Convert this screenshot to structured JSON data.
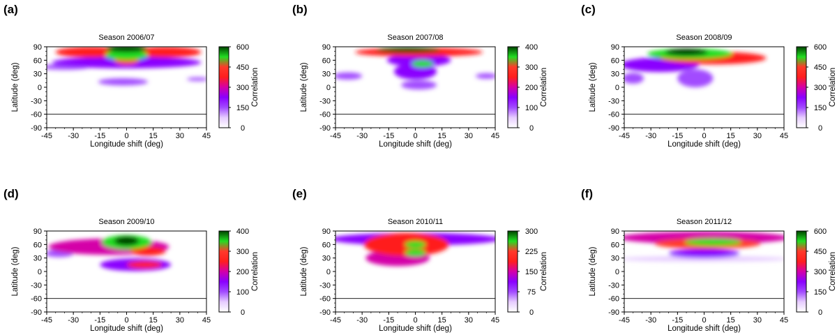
{
  "figure": {
    "palette": {
      "stops": [
        "#ffffff",
        "#e6ccff",
        "#a24bff",
        "#8a00ff",
        "#d400a8",
        "#ff1e1e",
        "#ff3a2a",
        "#22dd22",
        "#004400"
      ],
      "frame": "#000000"
    }
  },
  "chart_data": [
    {
      "type": "heatmap",
      "panel": "(a)",
      "title": "Season 2006/07",
      "xlabel": "Longitude shift (deg)",
      "ylabel": "Latitude (deg)",
      "colorbar_label": "Correlation",
      "xlim": [
        -45,
        45
      ],
      "ylim": [
        -90,
        90
      ],
      "x_ticks": [
        "-45",
        "-30",
        "-15",
        "0",
        "15",
        "30",
        "45"
      ],
      "y_ticks": [
        "90",
        "60",
        "30",
        "0",
        "-30",
        "-60",
        "-90"
      ],
      "colorbar_range": [
        0,
        600
      ],
      "colorbar_ticks": [
        "600",
        "450",
        "300",
        "150",
        "0"
      ],
      "reference_line_latitude": -60,
      "features": [
        {
          "lon": 0,
          "lat": 86,
          "rlon": 12,
          "rlat": 8,
          "value": 600
        },
        {
          "lon": 0,
          "lat": 72,
          "rlon": 12,
          "rlat": 12,
          "value": 520
        },
        {
          "lon": 0,
          "lat": 60,
          "rlon": 7,
          "rlat": 10,
          "value": 430
        },
        {
          "lon": -20,
          "lat": 78,
          "rlon": 20,
          "rlat": 12,
          "value": 340
        },
        {
          "lon": 22,
          "lat": 78,
          "rlon": 20,
          "rlat": 12,
          "value": 340
        },
        {
          "lon": 0,
          "lat": 55,
          "rlon": 42,
          "rlat": 13,
          "value": 210
        },
        {
          "lon": -35,
          "lat": 45,
          "rlon": 14,
          "rlat": 6,
          "value": 130
        },
        {
          "lon": 40,
          "lat": 18,
          "rlon": 6,
          "rlat": 4,
          "value": 150
        },
        {
          "lon": -2,
          "lat": 12,
          "rlon": 14,
          "rlat": 8,
          "value": 140
        }
      ]
    },
    {
      "type": "heatmap",
      "panel": "(b)",
      "title": "Season 2007/08",
      "xlabel": "Longitude shift (deg)",
      "ylabel": "Latitude (deg)",
      "colorbar_label": "Correlation",
      "xlim": [
        -45,
        45
      ],
      "ylim": [
        -90,
        90
      ],
      "x_ticks": [
        "-45",
        "-30",
        "-15",
        "0",
        "15",
        "30",
        "45"
      ],
      "y_ticks": [
        "90",
        "60",
        "30",
        "0",
        "-30",
        "-60",
        "-90"
      ],
      "colorbar_range": [
        0,
        400
      ],
      "colorbar_ticks": [
        "400",
        "300",
        "200",
        "100",
        "0"
      ],
      "reference_line_latitude": -60,
      "features": [
        {
          "lon": -4,
          "lat": 83,
          "rlon": 18,
          "rlat": 6,
          "value": 400
        },
        {
          "lon": 4,
          "lat": 52,
          "rlon": 6,
          "rlat": 8,
          "value": 330
        },
        {
          "lon": 2,
          "lat": 78,
          "rlon": 36,
          "rlat": 10,
          "value": 270
        },
        {
          "lon": 2,
          "lat": 60,
          "rlon": 18,
          "rlat": 14,
          "value": 170
        },
        {
          "lon": 0,
          "lat": 35,
          "rlon": 12,
          "rlat": 18,
          "value": 130
        },
        {
          "lon": 2,
          "lat": 5,
          "rlon": 10,
          "rlat": 10,
          "value": 110
        },
        {
          "lon": -38,
          "lat": 25,
          "rlon": 8,
          "rlat": 8,
          "value": 90
        },
        {
          "lon": 40,
          "lat": 25,
          "rlon": 6,
          "rlat": 6,
          "value": 110
        }
      ]
    },
    {
      "type": "heatmap",
      "panel": "(c)",
      "title": "Season 2008/09",
      "xlabel": "Longitude shift (deg)",
      "ylabel": "Latitude (deg)",
      "colorbar_label": "Correlation",
      "xlim": [
        -45,
        45
      ],
      "ylim": [
        -90,
        90
      ],
      "x_ticks": [
        "-45",
        "-30",
        "-15",
        "0",
        "15",
        "30",
        "45"
      ],
      "y_ticks": [
        "90",
        "60",
        "30",
        "0",
        "-30",
        "-60",
        "-90"
      ],
      "colorbar_range": [
        0,
        600
      ],
      "colorbar_ticks": [
        "600",
        "450",
        "300",
        "150",
        "0"
      ],
      "reference_line_latitude": -60,
      "features": [
        {
          "lon": -10,
          "lat": 78,
          "rlon": 12,
          "rlat": 8,
          "value": 600
        },
        {
          "lon": -8,
          "lat": 74,
          "rlon": 24,
          "rlat": 12,
          "value": 500
        },
        {
          "lon": 5,
          "lat": 65,
          "rlon": 30,
          "rlat": 14,
          "value": 380
        },
        {
          "lon": -25,
          "lat": 50,
          "rlon": 22,
          "rlat": 16,
          "value": 200
        },
        {
          "lon": -5,
          "lat": 20,
          "rlon": 10,
          "rlat": 20,
          "value": 180
        },
        {
          "lon": -40,
          "lat": 20,
          "rlon": 6,
          "rlat": 12,
          "value": 140
        }
      ]
    },
    {
      "type": "heatmap",
      "panel": "(d)",
      "title": "Season 2009/10",
      "xlabel": "Longitude shift (deg)",
      "ylabel": "Latitude (deg)",
      "colorbar_label": "Correlation",
      "xlim": [
        -45,
        45
      ],
      "ylim": [
        -90,
        90
      ],
      "x_ticks": [
        "-45",
        "-30",
        "-15",
        "0",
        "15",
        "30",
        "45"
      ],
      "y_ticks": [
        "90",
        "60",
        "30",
        "0",
        "-30",
        "-60",
        "-90"
      ],
      "colorbar_range": [
        0,
        400
      ],
      "colorbar_ticks": [
        "400",
        "300",
        "200",
        "100",
        "0"
      ],
      "reference_line_latitude": -60,
      "features": [
        {
          "lon": 0,
          "lat": 68,
          "rlon": 7,
          "rlat": 10,
          "value": 400
        },
        {
          "lon": 0,
          "lat": 65,
          "rlon": 14,
          "rlat": 16,
          "value": 330
        },
        {
          "lon": 12,
          "lat": 45,
          "rlon": 10,
          "rlat": 10,
          "value": 240
        },
        {
          "lon": -10,
          "lat": 55,
          "rlon": 34,
          "rlat": 18,
          "value": 200
        },
        {
          "lon": 10,
          "lat": 15,
          "rlon": 10,
          "rlat": 8,
          "value": 230
        },
        {
          "lon": 5,
          "lat": 15,
          "rlon": 20,
          "rlat": 14,
          "value": 150
        },
        {
          "lon": -38,
          "lat": 40,
          "rlon": 8,
          "rlat": 8,
          "value": 110
        }
      ]
    },
    {
      "type": "heatmap",
      "panel": "(e)",
      "title": "Season 2010/11",
      "xlabel": "Longitude shift (deg)",
      "ylabel": "Latitude (deg)",
      "colorbar_label": "Correlation",
      "xlim": [
        -45,
        45
      ],
      "ylim": [
        -90,
        90
      ],
      "x_ticks": [
        "-45",
        "-30",
        "-15",
        "0",
        "15",
        "30",
        "45"
      ],
      "y_ticks": [
        "90",
        "60",
        "30",
        "0",
        "-30",
        "-60",
        "-90"
      ],
      "colorbar_range": [
        0,
        300
      ],
      "colorbar_ticks": [
        "300",
        "225",
        "150",
        "75",
        "0"
      ],
      "reference_line_latitude": -60,
      "features": [
        {
          "lon": 0,
          "lat": 60,
          "rlon": 6,
          "rlat": 8,
          "value": 280
        },
        {
          "lon": 0,
          "lat": 42,
          "rlon": 6,
          "rlat": 8,
          "value": 270
        },
        {
          "lon": -5,
          "lat": 60,
          "rlon": 24,
          "rlat": 26,
          "value": 180
        },
        {
          "lon": -10,
          "lat": 30,
          "rlon": 18,
          "rlat": 18,
          "value": 140
        },
        {
          "lon": 0,
          "lat": 72,
          "rlon": 48,
          "rlat": 14,
          "value": 120
        }
      ]
    },
    {
      "type": "heatmap",
      "panel": "(f)",
      "title": "Season 2011/12",
      "xlabel": "Longitude shift (deg)",
      "ylabel": "Latitude (deg)",
      "colorbar_label": "Correlation",
      "xlim": [
        -45,
        45
      ],
      "ylim": [
        -90,
        90
      ],
      "x_ticks": [
        "-45",
        "-30",
        "-15",
        "0",
        "15",
        "30",
        "45"
      ],
      "y_ticks": [
        "90",
        "60",
        "30",
        "0",
        "-30",
        "-60",
        "-90"
      ],
      "colorbar_range": [
        0,
        600
      ],
      "colorbar_ticks": [
        "600",
        "450",
        "300",
        "150",
        "0"
      ],
      "reference_line_latitude": -60,
      "features": [
        {
          "lon": 5,
          "lat": 65,
          "rlon": 16,
          "rlat": 8,
          "value": 560
        },
        {
          "lon": 2,
          "lat": 62,
          "rlon": 30,
          "rlat": 12,
          "value": 420
        },
        {
          "lon": 0,
          "lat": 75,
          "rlon": 48,
          "rlat": 14,
          "value": 300
        },
        {
          "lon": 0,
          "lat": 40,
          "rlon": 20,
          "rlat": 10,
          "value": 240
        },
        {
          "lon": 0,
          "lat": 28,
          "rlon": 48,
          "rlat": 6,
          "value": 45
        }
      ]
    }
  ]
}
